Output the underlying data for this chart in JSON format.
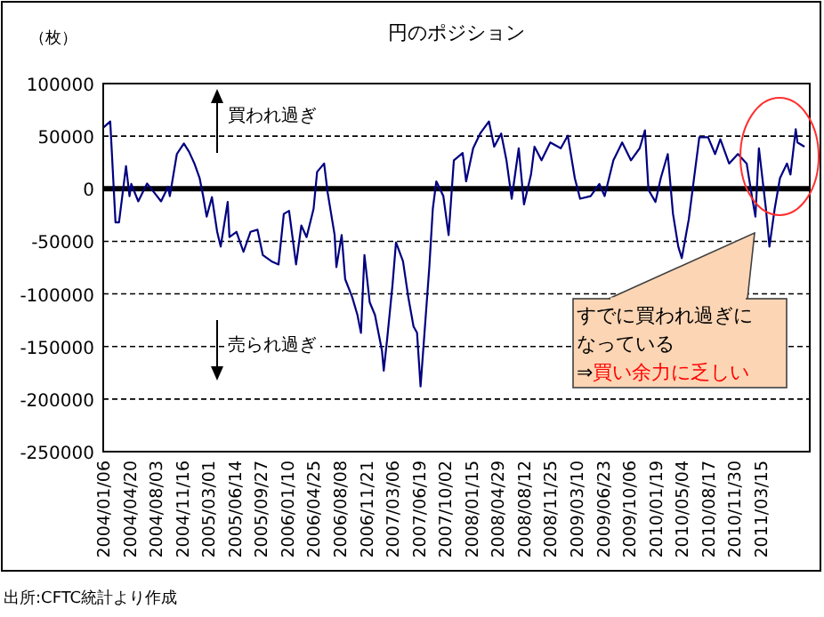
{
  "chart_data": {
    "type": "line",
    "title": "円のポジション",
    "ylabel": "（枚）",
    "x": [
      "2004-01-06",
      "2004-02-03",
      "2004-02-24",
      "2004-03-09",
      "2004-04-06",
      "2004-04-20",
      "2004-04-27",
      "2004-05-25",
      "2004-06-29",
      "2004-07-27",
      "2004-08-24",
      "2004-09-21",
      "2004-09-28",
      "2004-10-26",
      "2004-11-23",
      "2004-12-14",
      "2005-01-04",
      "2005-01-25",
      "2005-02-08",
      "2005-02-22",
      "2005-03-15",
      "2005-04-05",
      "2005-04-19",
      "2005-05-17",
      "2005-05-24",
      "2005-06-21",
      "2005-07-19",
      "2005-08-16",
      "2005-09-13",
      "2005-10-04",
      "2005-11-08",
      "2005-12-06",
      "2005-12-27",
      "2006-01-17",
      "2006-02-14",
      "2006-03-07",
      "2006-03-28",
      "2006-04-25",
      "2006-05-09",
      "2006-06-06",
      "2006-06-20",
      "2006-07-18",
      "2006-07-25",
      "2006-08-15",
      "2006-08-29",
      "2006-09-26",
      "2006-10-17",
      "2006-10-31",
      "2006-11-14",
      "2006-12-05",
      "2006-12-26",
      "2007-01-23",
      "2007-01-30",
      "2007-02-13",
      "2007-03-06",
      "2007-03-20",
      "2007-04-17",
      "2007-05-08",
      "2007-05-29",
      "2007-06-12",
      "2007-06-26",
      "2007-07-17",
      "2007-07-31",
      "2007-08-14",
      "2007-08-28",
      "2007-09-25",
      "2007-10-16",
      "2007-11-06",
      "2007-12-11",
      "2007-12-25",
      "2008-01-22",
      "2008-02-19",
      "2008-03-25",
      "2008-04-15",
      "2008-05-13",
      "2008-06-03",
      "2008-06-24",
      "2008-07-22",
      "2008-08-12",
      "2008-09-09",
      "2008-09-23",
      "2008-10-21",
      "2008-11-25",
      "2009-01-06",
      "2009-02-03",
      "2009-03-03",
      "2009-03-24",
      "2009-05-05",
      "2009-06-09",
      "2009-06-30",
      "2009-08-04",
      "2009-09-08",
      "2009-10-13",
      "2009-11-17",
      "2009-12-08",
      "2009-12-22",
      "2010-01-19",
      "2010-02-09",
      "2010-03-09",
      "2010-03-30",
      "2010-04-20",
      "2010-05-04",
      "2010-06-01",
      "2010-06-22",
      "2010-07-13",
      "2010-08-17",
      "2010-09-14",
      "2010-10-05",
      "2010-11-09",
      "2010-12-14",
      "2011-01-18",
      "2011-02-08",
      "2011-02-22",
      "2011-03-08",
      "2011-04-05",
      "2011-04-19",
      "2011-05-10",
      "2011-05-31",
      "2011-06-28",
      "2011-07-12",
      "2011-08-02",
      "2011-08-09",
      "2011-09-06"
    ],
    "series": [
      {
        "color": "#000080",
        "values": [
          58000,
          64000,
          -32000,
          -32000,
          21500,
          -7000,
          4500,
          -12000,
          5000,
          -3500,
          -12000,
          2000,
          -7000,
          33000,
          43000,
          35000,
          24000,
          10000,
          -7000,
          -26500,
          -8000,
          -41000,
          -55000,
          -12500,
          -46000,
          -41000,
          -60000,
          -41000,
          -39000,
          -63000,
          -69000,
          -72000,
          -24000,
          -21000,
          -72000,
          -35000,
          -46000,
          -19000,
          16000,
          24000,
          -3500,
          -44000,
          -74500,
          -44000,
          -86000,
          -103000,
          -120000,
          -137000,
          -63000,
          -108000,
          -120000,
          -154000,
          -173000,
          -142000,
          -91500,
          -51000,
          -69000,
          -103000,
          -131000,
          -137000,
          -188000,
          -120000,
          -74500,
          -19000,
          7000,
          -7000,
          -44000,
          27000,
          34000,
          7000,
          38500,
          52500,
          64000,
          40000,
          52500,
          27000,
          -9500,
          38500,
          -15000,
          13500,
          40000,
          27000,
          44000,
          38500,
          50500,
          10000,
          -9500,
          -7000,
          4500,
          -7000,
          27000,
          44000,
          27000,
          38500,
          55500,
          -1000,
          -12500,
          10000,
          33000,
          -24000,
          -55000,
          -66000,
          -29000,
          10000,
          49000,
          49000,
          33000,
          47000,
          24000,
          33000,
          24000,
          -7000,
          -26500,
          38500,
          -19000,
          -55000,
          -19000,
          10000,
          24000,
          13500,
          56500,
          44000,
          40000
        ]
      }
    ],
    "xlim": [
      "2004-01-06",
      "2011-09-27"
    ],
    "xticks": [
      {
        "value": "2004-01-06",
        "label": "2004/01/06"
      },
      {
        "value": "2004-04-20",
        "label": "2004/04/20"
      },
      {
        "value": "2004-08-03",
        "label": "2004/08/03"
      },
      {
        "value": "2004-11-16",
        "label": "2004/11/16"
      },
      {
        "value": "2005-03-01",
        "label": "2005/03/01"
      },
      {
        "value": "2005-06-14",
        "label": "2005/06/14"
      },
      {
        "value": "2005-09-27",
        "label": "2005/09/27"
      },
      {
        "value": "2006-01-10",
        "label": "2006/01/10"
      },
      {
        "value": "2006-04-25",
        "label": "2006/04/25"
      },
      {
        "value": "2006-08-08",
        "label": "2006/08/08"
      },
      {
        "value": "2006-11-21",
        "label": "2006/11/21"
      },
      {
        "value": "2007-03-06",
        "label": "2007/03/06"
      },
      {
        "value": "2007-06-19",
        "label": "2007/06/19"
      },
      {
        "value": "2007-10-02",
        "label": "2007/10/02"
      },
      {
        "value": "2008-01-15",
        "label": "2008/01/15"
      },
      {
        "value": "2008-04-29",
        "label": "2008/04/29"
      },
      {
        "value": "2008-08-12",
        "label": "2008/08/12"
      },
      {
        "value": "2008-11-25",
        "label": "2008/11/25"
      },
      {
        "value": "2009-03-10",
        "label": "2009/03/10"
      },
      {
        "value": "2009-06-23",
        "label": "2009/06/23"
      },
      {
        "value": "2009-10-06",
        "label": "2009/10/06"
      },
      {
        "value": "2010-01-19",
        "label": "2010/01/19"
      },
      {
        "value": "2010-05-04",
        "label": "2010/05/04"
      },
      {
        "value": "2010-08-17",
        "label": "2010/08/17"
      },
      {
        "value": "2010-11-30",
        "label": "2010/11/30"
      },
      {
        "value": "2011-03-15",
        "label": "2011/03/15"
      }
    ],
    "ylim": [
      -250000,
      100000
    ],
    "yticks": [
      -250000,
      -200000,
      -150000,
      -100000,
      -50000,
      0,
      50000,
      100000
    ],
    "grid": "y",
    "ref_lines": [
      {
        "axis": "y",
        "value": 0,
        "color": "#000000"
      }
    ],
    "annotations": [
      "買われ過ぎ",
      "売られ過ぎ",
      "すでに買われ過ぎに",
      "なっている",
      "⇒",
      "買い余力に乏しい",
      "出所:CFTC統計より作成"
    ]
  }
}
